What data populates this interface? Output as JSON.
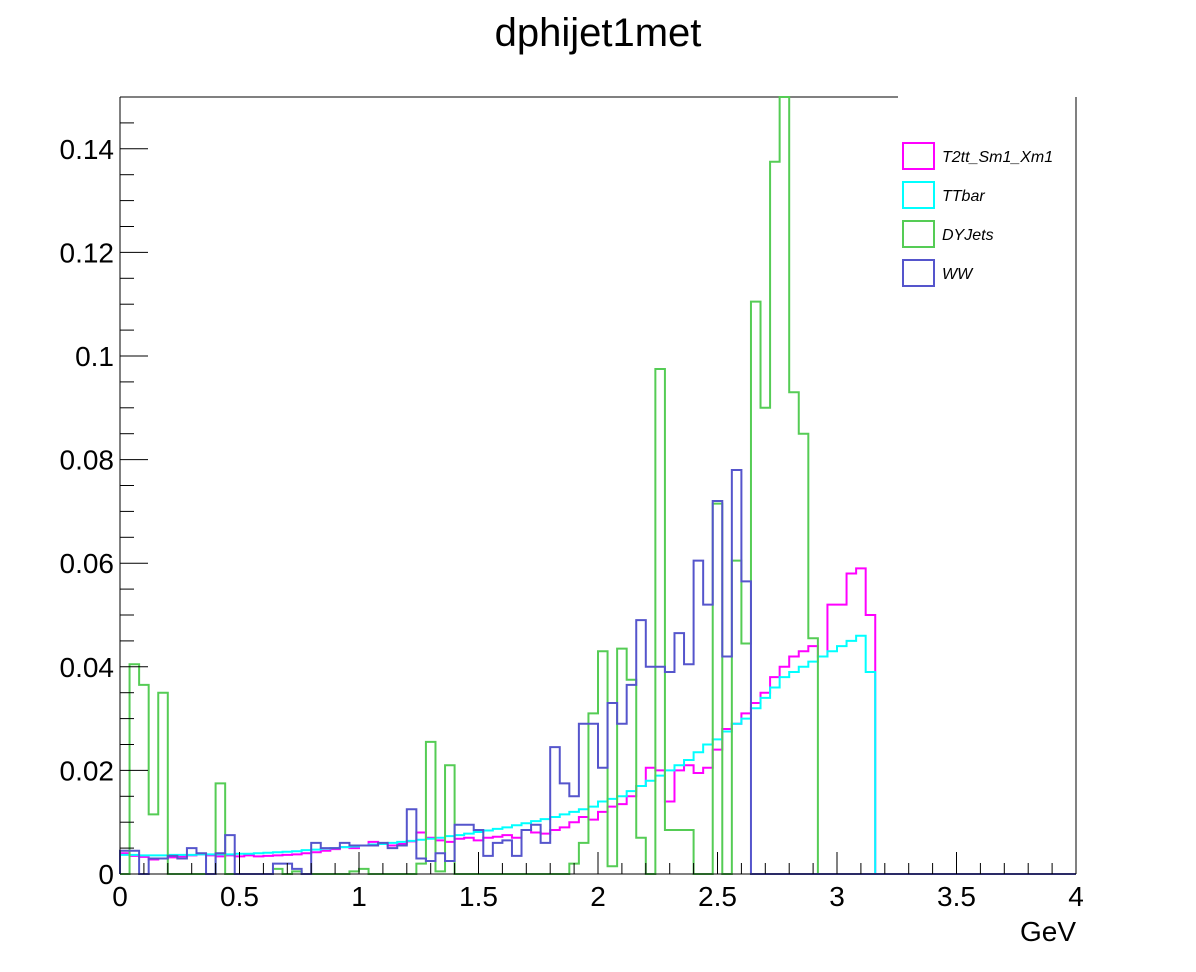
{
  "chart_data": {
    "type": "step-histogram",
    "title": "dphijet1met",
    "xlabel": "GeV",
    "ylabel": "",
    "xlim": [
      0,
      4
    ],
    "ylim": [
      0,
      0.15
    ],
    "grid": false,
    "legend_position": "top-right",
    "xticks": [
      0,
      0.5,
      1,
      1.5,
      2,
      2.5,
      3,
      3.5,
      4
    ],
    "xtick_labels": [
      "0",
      "0.5",
      "1",
      "1.5",
      "2",
      "2.5",
      "3",
      "3.5",
      "4"
    ],
    "yticks": [
      0,
      0.02,
      0.04,
      0.06,
      0.08,
      0.1,
      0.12,
      0.14
    ],
    "ytick_labels": [
      "0",
      "0.02",
      "0.04",
      "0.06",
      "0.08",
      "0.1",
      "0.12",
      "0.14"
    ],
    "bin_width": 0.04,
    "series": [
      {
        "name": "T2tt_Sm1_Xm1",
        "color": "#ff00ff",
        "values": [
          0.004,
          0.0035,
          0.0033,
          0.0028,
          0.003,
          0.0032,
          0.0034,
          0.0036,
          0.0038,
          0.0036,
          0.0034,
          0.0036,
          0.0034,
          0.0036,
          0.0034,
          0.0035,
          0.0036,
          0.0037,
          0.0038,
          0.004,
          0.0042,
          0.0045,
          0.0048,
          0.0052,
          0.005,
          0.0055,
          0.0062,
          0.0058,
          0.0055,
          0.0058,
          0.0063,
          0.008,
          0.007,
          0.0065,
          0.0062,
          0.0068,
          0.007,
          0.0065,
          0.007,
          0.0072,
          0.0075,
          0.007,
          0.0085,
          0.008,
          0.0078,
          0.0085,
          0.009,
          0.01,
          0.011,
          0.0105,
          0.012,
          0.013,
          0.0135,
          0.015,
          0.017,
          0.0205,
          0.02,
          0.014,
          0.02,
          0.021,
          0.0195,
          0.0205,
          0.024,
          0.028,
          0.029,
          0.031,
          0.033,
          0.035,
          0.038,
          0.04,
          0.042,
          0.043,
          0.044,
          0.042,
          0.052,
          0.052,
          0.058,
          0.059,
          0.05,
          0,
          0,
          0,
          0,
          0,
          0,
          0,
          0,
          0,
          0,
          0,
          0,
          0,
          0,
          0,
          0,
          0,
          0,
          0,
          0,
          0
        ]
      },
      {
        "name": "TTbar",
        "color": "#00ffff",
        "values": [
          0.0037,
          0.0037,
          0.0036,
          0.0036,
          0.0036,
          0.0037,
          0.0037,
          0.0037,
          0.0038,
          0.0038,
          0.0038,
          0.0038,
          0.0039,
          0.0039,
          0.004,
          0.0041,
          0.0042,
          0.0043,
          0.0044,
          0.0046,
          0.0047,
          0.0049,
          0.005,
          0.0052,
          0.0053,
          0.0055,
          0.0057,
          0.0058,
          0.006,
          0.0062,
          0.0064,
          0.0066,
          0.0068,
          0.007,
          0.0073,
          0.0075,
          0.0078,
          0.0081,
          0.0084,
          0.0087,
          0.009,
          0.0094,
          0.0098,
          0.0102,
          0.0106,
          0.011,
          0.0115,
          0.012,
          0.0125,
          0.013,
          0.014,
          0.0145,
          0.015,
          0.016,
          0.017,
          0.018,
          0.019,
          0.02,
          0.021,
          0.022,
          0.0235,
          0.025,
          0.026,
          0.0275,
          0.029,
          0.03,
          0.032,
          0.034,
          0.036,
          0.038,
          0.039,
          0.04,
          0.041,
          0.042,
          0.043,
          0.044,
          0.045,
          0.046,
          0.039,
          0,
          0,
          0,
          0,
          0,
          0,
          0,
          0,
          0,
          0,
          0,
          0,
          0,
          0,
          0,
          0,
          0,
          0,
          0,
          0,
          0
        ]
      },
      {
        "name": "DYJets",
        "color": "#55cc55",
        "values": [
          0.0,
          0.0405,
          0.0365,
          0.0115,
          0.035,
          0.0,
          0.0,
          0.0,
          0.0,
          0.0,
          0.0,
          0.0,
          0.0,
          0.0,
          0.0,
          0.0,
          0.001,
          0.0,
          0.0005,
          0.0,
          0.0,
          0.0,
          0.0,
          0.0,
          0.0005,
          0.001,
          0.0,
          0.0,
          0.0,
          0.0,
          0.0,
          0.0,
          0.0,
          0.0,
          0.0,
          0.0,
          0.0,
          0.0,
          0.0,
          0.0,
          0.0,
          0.0,
          0.0,
          0.0,
          0.0,
          0.0,
          0.0,
          0.0,
          0.0,
          0.0,
          0.0,
          0.0,
          0.0,
          0.0,
          0.0,
          0.0,
          0.0,
          0.0,
          0.0,
          0.0,
          0.0,
          0.0,
          0.0,
          0.0,
          0.0,
          0.0,
          0.0,
          0.0,
          0.0,
          0.0,
          0.0,
          0.0,
          0.0,
          0.0,
          0.0,
          0.0,
          0.0,
          0.0,
          0.0,
          0,
          0,
          0,
          0,
          0,
          0,
          0,
          0,
          0,
          0,
          0,
          0,
          0,
          0,
          0,
          0,
          0,
          0,
          0,
          0,
          0
        ],
        "overrides": {
          "10": 0.0175,
          "30": 0.0,
          "31": 0.002,
          "32": 0.0255,
          "33": 0.0005,
          "34": 0.021,
          "35": 0.0,
          "36": 0.0,
          "37": 0.0,
          "38": 0.0,
          "39": 0.0,
          "40": 0.0,
          "41": 0.0,
          "42": 0.0,
          "43": 0.0,
          "44": 0.0,
          "45": 0.0,
          "46": 0.0,
          "47": 0.002,
          "48": 0.006,
          "49": 0.031,
          "50": 0.043,
          "51": 0.0015,
          "52": 0.0435,
          "53": 0.0375,
          "54": 0.007,
          "55": 0.0,
          "56": 0.0975,
          "57": 0.0085,
          "58": 0.0085,
          "59": 0.0085,
          "60": 0.0,
          "61": 0.0,
          "62": 0.0715,
          "63": 0.0,
          "64": 0.0605,
          "65": 0.0445,
          "66": 0.1105,
          "67": 0.09,
          "68": 0.1375,
          "69": 0.15,
          "70": 0.093,
          "71": 0.085,
          "72": 0.0455
        }
      },
      {
        "name": "WW",
        "color": "#5555cc",
        "values": [
          0.0045,
          0.0045,
          0.0,
          0.003,
          0.003,
          0.0035,
          0.003,
          0.005,
          0.004,
          0.0,
          0.004,
          0.0075,
          0.0,
          0.0,
          0.0,
          0.0,
          0.002,
          0.002,
          0.001,
          0.0,
          0.006,
          0.005,
          0.005,
          0.006,
          0.0055,
          0.0055,
          0.0055,
          0.006,
          0.005,
          0.0055,
          0.0125,
          0.003,
          0.0025,
          0.004,
          0.0025,
          0.0095,
          0.0095,
          0.0085,
          0.0035,
          0.006,
          0.0065,
          0.0035,
          0.0085,
          0.0095,
          0.006,
          0.0245,
          0.0175,
          0.015,
          0.029,
          0.029,
          0.0205,
          0.033,
          0.029,
          0.0365,
          0.049,
          0.04,
          0.04,
          0.039,
          0.0465,
          0.0405,
          0.0605,
          0.052,
          0.072,
          0.042,
          0.078,
          0.0565,
          0,
          0,
          0,
          0,
          0,
          0,
          0,
          0,
          0,
          0,
          0,
          0,
          0,
          0,
          0,
          0,
          0,
          0,
          0,
          0,
          0,
          0,
          0,
          0,
          0,
          0,
          0,
          0,
          0,
          0,
          0,
          0,
          0,
          0,
          0
        ],
        "shift_bins": 13
      }
    ]
  }
}
